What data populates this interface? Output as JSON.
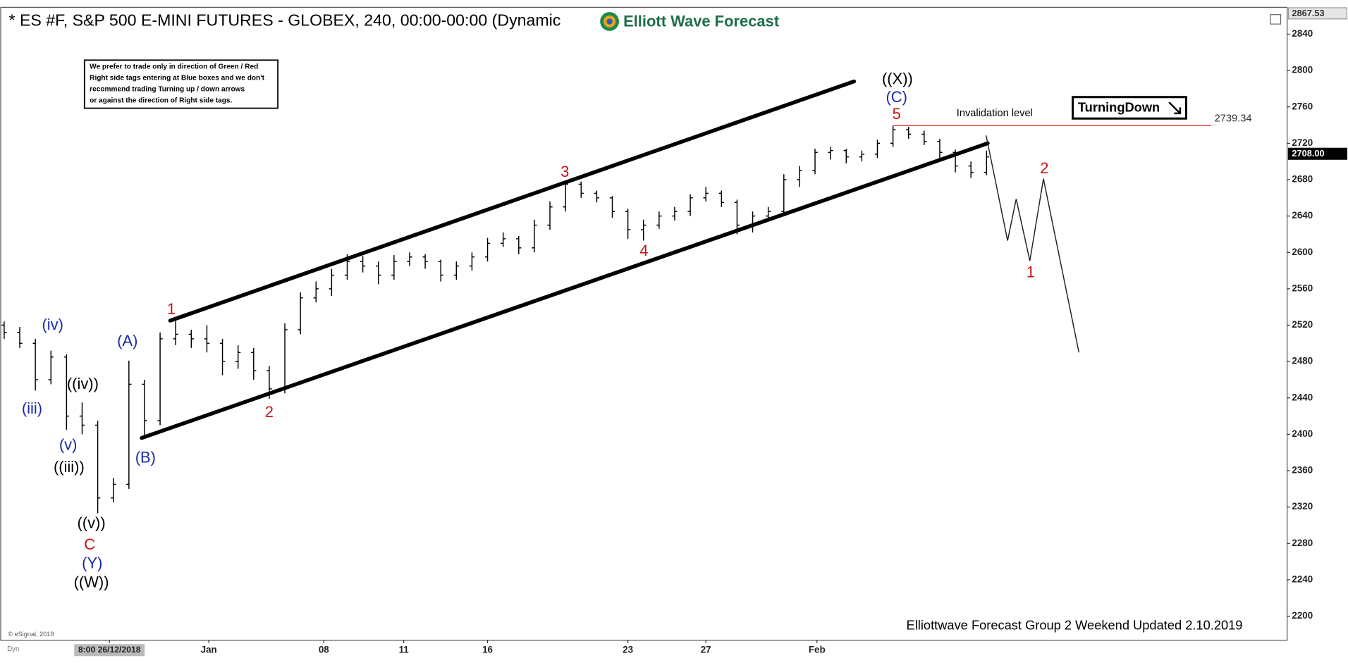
{
  "chart_data": {
    "type": "ohlc",
    "title": "* ES #F, S&P 500 E-MINI FUTURES - GLOBEX, 240, 00:00-00:00 (Dynamic",
    "logo": "Elliott Wave Forecast",
    "note": [
      "We prefer to trade only in direction of Green / Red",
      "Right side tags entering at Blue boxes and we don't",
      "recommend trading Turning up / down arrows",
      "or against the direction of Right side tags."
    ],
    "color": "#000000",
    "x": [
      1,
      5,
      9,
      13,
      17,
      21,
      25,
      29,
      33,
      37,
      41,
      45,
      49,
      53,
      57,
      61,
      65,
      69,
      73,
      77,
      81,
      85,
      89,
      93,
      97,
      101,
      105,
      109,
      113,
      117,
      121,
      125,
      129,
      133,
      137,
      141,
      145,
      149,
      153,
      157,
      161,
      165,
      169,
      173,
      177,
      181,
      185,
      189,
      193,
      197,
      201,
      205,
      209,
      213,
      217,
      221,
      225,
      229,
      233,
      237,
      241,
      245,
      249,
      253
    ],
    "ohlc": [
      [
        2520,
        2524,
        2505,
        2512
      ],
      [
        2512,
        2518,
        2495,
        2500
      ],
      [
        2500,
        2505,
        2448,
        2460
      ],
      [
        2460,
        2492,
        2455,
        2485
      ],
      [
        2485,
        2488,
        2405,
        2420
      ],
      [
        2420,
        2435,
        2400,
        2410
      ],
      [
        2410,
        2415,
        2313,
        2330
      ],
      [
        2330,
        2352,
        2325,
        2345
      ],
      [
        2345,
        2481,
        2340,
        2455
      ],
      [
        2455,
        2460,
        2396,
        2415
      ],
      [
        2415,
        2512,
        2410,
        2505
      ],
      [
        2505,
        2526,
        2498,
        2510
      ],
      [
        2510,
        2515,
        2495,
        2505
      ],
      [
        2505,
        2520,
        2490,
        2500
      ],
      [
        2500,
        2505,
        2465,
        2480
      ],
      [
        2480,
        2498,
        2472,
        2490
      ],
      [
        2490,
        2495,
        2460,
        2470
      ],
      [
        2470,
        2475,
        2439,
        2450
      ],
      [
        2450,
        2522,
        2445,
        2515
      ],
      [
        2515,
        2556,
        2510,
        2550
      ],
      [
        2550,
        2568,
        2545,
        2560
      ],
      [
        2560,
        2582,
        2552,
        2575
      ],
      [
        2575,
        2598,
        2570,
        2590
      ],
      [
        2590,
        2596,
        2578,
        2585
      ],
      [
        2585,
        2590,
        2565,
        2575
      ],
      [
        2575,
        2597,
        2570,
        2590
      ],
      [
        2590,
        2600,
        2585,
        2595
      ],
      [
        2595,
        2598,
        2582,
        2590
      ],
      [
        2590,
        2592,
        2568,
        2575
      ],
      [
        2575,
        2590,
        2570,
        2585
      ],
      [
        2585,
        2600,
        2580,
        2595
      ],
      [
        2595,
        2616,
        2590,
        2610
      ],
      [
        2610,
        2622,
        2606,
        2615
      ],
      [
        2615,
        2618,
        2598,
        2605
      ],
      [
        2605,
        2636,
        2600,
        2630
      ],
      [
        2630,
        2656,
        2625,
        2650
      ],
      [
        2650,
        2679,
        2645,
        2675
      ],
      [
        2675,
        2678,
        2660,
        2665
      ],
      [
        2665,
        2668,
        2655,
        2660
      ],
      [
        2660,
        2662,
        2638,
        2645
      ],
      [
        2645,
        2648,
        2615,
        2625
      ],
      [
        2625,
        2636,
        2613,
        2630
      ],
      [
        2630,
        2645,
        2626,
        2640
      ],
      [
        2640,
        2650,
        2635,
        2645
      ],
      [
        2645,
        2664,
        2640,
        2660
      ],
      [
        2660,
        2672,
        2656,
        2665
      ],
      [
        2665,
        2668,
        2650,
        2655
      ],
      [
        2655,
        2658,
        2620,
        2630
      ],
      [
        2630,
        2645,
        2622,
        2640
      ],
      [
        2640,
        2650,
        2634,
        2645
      ],
      [
        2645,
        2686,
        2640,
        2680
      ],
      [
        2680,
        2695,
        2672,
        2690
      ],
      [
        2690,
        2714,
        2686,
        2710
      ],
      [
        2710,
        2716,
        2702,
        2712
      ],
      [
        2712,
        2714,
        2698,
        2705
      ],
      [
        2705,
        2712,
        2700,
        2708
      ],
      [
        2708,
        2724,
        2704,
        2720
      ],
      [
        2720,
        2739,
        2716,
        2735
      ],
      [
        2735,
        2738,
        2725,
        2730
      ],
      [
        2730,
        2734,
        2718,
        2722
      ],
      [
        2722,
        2725,
        2702,
        2710
      ],
      [
        2710,
        2713,
        2688,
        2695
      ],
      [
        2695,
        2700,
        2682,
        2688
      ],
      [
        2688,
        2712,
        2685,
        2705
      ]
    ],
    "xlim": [
      0,
      330
    ],
    "ylim": [
      2174,
      2870
    ],
    "yticks": [
      2200,
      2240,
      2280,
      2320,
      2360,
      2400,
      2440,
      2480,
      2520,
      2560,
      2600,
      2640,
      2680,
      2720,
      2760,
      2800,
      2840
    ],
    "xticks": [
      {
        "value": 28,
        "label": "8:00 26/12/2018"
      },
      {
        "value": 53.5,
        "label": "Jan"
      },
      {
        "value": 83,
        "label": "08"
      },
      {
        "value": 103.5,
        "label": "11"
      },
      {
        "value": 125,
        "label": "16"
      },
      {
        "value": 161,
        "label": "23"
      },
      {
        "value": 181,
        "label": "27"
      },
      {
        "value": 209.5,
        "label": "Feb"
      }
    ],
    "ymarkers": [
      2867.53,
      {
        "value": 2708,
        "label": "2708.00"
      }
    ],
    "channel": [
      {
        "x": [
          43.6,
          219
        ],
        "y": [
          2525,
          2788
        ]
      },
      {
        "x": [
          36.3,
          253.3
        ],
        "y": [
          2396,
          2720
        ]
      }
    ],
    "invalidation": {
      "label": "Invalidation level",
      "level": 2739.34,
      "x": [
        229,
        310.6
      ],
      "color": "#e03030"
    },
    "projection": {
      "x": [
        252.9,
        258.4,
        260.6,
        264.1,
        267.6,
        276.7
      ],
      "y": [
        2728.6,
        2613,
        2658.7,
        2590.7,
        2681,
        2490
      ]
    },
    "wave_labels": [
      {
        "text": "(iv)",
        "color": "#1a2aa8"
      },
      {
        "text": "(iii)",
        "color": "#1a2aa8"
      },
      {
        "text": "((iv))",
        "color": "#000000"
      },
      {
        "text": "(v)",
        "color": "#1a2aa8"
      },
      {
        "text": "((iii))",
        "color": "#000000"
      },
      {
        "text": "((v))",
        "color": "#000000"
      },
      {
        "text": "C",
        "color": "#cc1111"
      },
      {
        "text": "(Y)",
        "color": "#1a2aa8"
      },
      {
        "text": "((W))",
        "color": "#000000"
      },
      {
        "text": "(A)",
        "color": "#1a2aa8"
      },
      {
        "text": "(B)",
        "color": "#1a2aa8"
      },
      {
        "text": "1",
        "color": "#cc1111"
      },
      {
        "text": "2",
        "color": "#cc1111"
      },
      {
        "text": "3",
        "color": "#cc1111"
      },
      {
        "text": "4",
        "color": "#cc1111"
      },
      {
        "text": "((X))",
        "color": "#000000"
      },
      {
        "text": "(C)",
        "color": "#1a2aa8"
      },
      {
        "text": "5",
        "color": "#cc1111"
      },
      {
        "text": "2",
        "color": "#cc1111"
      },
      {
        "text": "1",
        "color": "#cc1111"
      }
    ],
    "signal": "TurningDown",
    "footer": "Elliottwave Forecast Group 2 Weekend Updated 2.10.2019",
    "copyright": "© eSignal, 2019",
    "mode": "Dyn"
  }
}
